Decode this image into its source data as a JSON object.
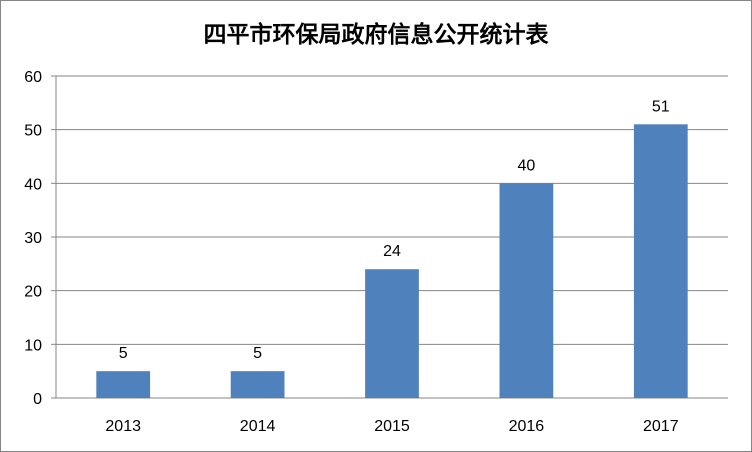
{
  "chart_data": {
    "type": "bar",
    "title": "四平市环保局政府信息公开统计表",
    "categories": [
      "2013",
      "2014",
      "2015",
      "2016",
      "2017"
    ],
    "values": [
      5,
      5,
      24,
      40,
      51
    ],
    "data_labels": [
      "5",
      "5",
      "24",
      "40",
      "51"
    ],
    "ylim": [
      0,
      60
    ],
    "yticks": [
      0,
      10,
      20,
      30,
      40,
      50,
      60
    ],
    "grid": true,
    "bar_color": "#4f81bd"
  }
}
